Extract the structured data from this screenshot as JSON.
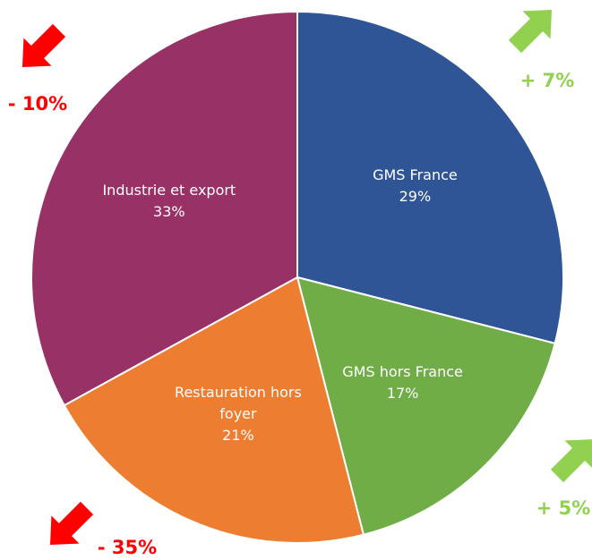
{
  "chart_data": {
    "type": "pie",
    "categories": [
      "GMS France",
      "GMS hors France",
      "Restauration hors foyer",
      "Industrie et export"
    ],
    "values": [
      29,
      17,
      21,
      33
    ],
    "value_labels": [
      "29%",
      "17%",
      "21%",
      "33%"
    ],
    "colors": [
      "#2f5597",
      "#70ad47",
      "#ed7d31",
      "#983266"
    ],
    "annotations": [
      {
        "text": "+ 7%",
        "color": "#92d050"
      },
      {
        "text": "+ 5%",
        "color": "#92d050"
      },
      {
        "text": "- 35%",
        "color": "#ff0000"
      },
      {
        "text": "- 10%",
        "color": "#ff0000"
      }
    ]
  }
}
